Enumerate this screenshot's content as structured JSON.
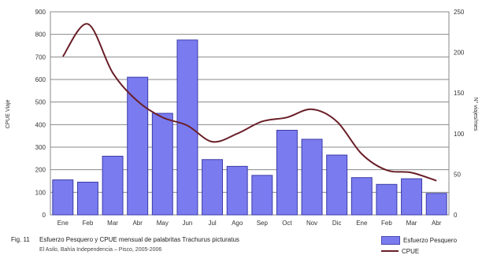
{
  "chart_data": {
    "type": "bar",
    "categories": [
      "Ene",
      "Feb",
      "Mar",
      "Abr",
      "May",
      "Jun",
      "Jul",
      "Ago",
      "Sep",
      "Oct",
      "Nov",
      "Dic",
      "Ene",
      "Feb",
      "Mar",
      "Abr"
    ],
    "series": [
      {
        "name": "Esfuerzo Pesquero",
        "type": "bar",
        "axis": "left",
        "color": "#7b7bf0",
        "values": [
          155,
          145,
          260,
          610,
          450,
          775,
          245,
          215,
          175,
          375,
          335,
          265,
          165,
          135,
          160,
          95
        ]
      },
      {
        "name": "CPUE",
        "type": "line",
        "axis": "right",
        "color": "#6a1f28",
        "values": [
          195,
          235,
          175,
          140,
          120,
          110,
          90,
          100,
          115,
          120,
          130,
          115,
          75,
          55,
          52,
          42
        ]
      }
    ],
    "ylabel": "CPUE Viaje",
    "y2label": "N° viajes/mes",
    "ylim": [
      0,
      900
    ],
    "y2lim": [
      0,
      250
    ],
    "yticks": [
      0,
      100,
      200,
      300,
      400,
      500,
      600,
      700,
      800,
      900
    ],
    "y2ticks": [
      0,
      50,
      100,
      150,
      200,
      250
    ],
    "grid": true,
    "legend_position": "bottom-right"
  },
  "caption": {
    "fig_label": "Fig. 11",
    "line1": "Esfuerzo Pesquero y CPUE mensual de palabritas Trachurus picturatus",
    "line2": "El Asilo, Bahía Independencia – Pisco, 2005-2006"
  }
}
